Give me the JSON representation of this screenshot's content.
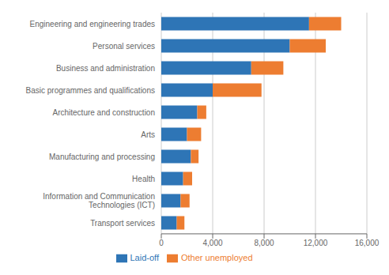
{
  "chart_data": {
    "type": "bar",
    "orientation": "horizontal",
    "stacked": true,
    "categories": [
      "Engineering and engineering trades",
      "Personal services",
      "Business and administration",
      "Basic programmes and qualifications",
      "Architecture and construction",
      "Arts",
      "Manufacturing and processing",
      "Health",
      "Information and Communication\nTechnologies (ICT)",
      "Transport services"
    ],
    "series": [
      {
        "name": "Laid-off",
        "color": "#2e75b6",
        "values": [
          11500,
          10000,
          7000,
          4000,
          2800,
          2000,
          2300,
          1700,
          1500,
          1200
        ]
      },
      {
        "name": "Other unemployed",
        "color": "#ed7d31",
        "values": [
          2500,
          2800,
          2500,
          3800,
          700,
          1100,
          600,
          700,
          700,
          600
        ]
      }
    ],
    "xlim": [
      0,
      16000
    ],
    "xticks": [
      0,
      {
        "value": 4000,
        "label": "4,000"
      },
      {
        "value": 8000,
        "label": "8,000"
      },
      {
        "value": 12000,
        "label": "12,000"
      },
      {
        "value": 16000,
        "label": "16,000"
      }
    ],
    "grid": true,
    "legend": "bottom"
  }
}
